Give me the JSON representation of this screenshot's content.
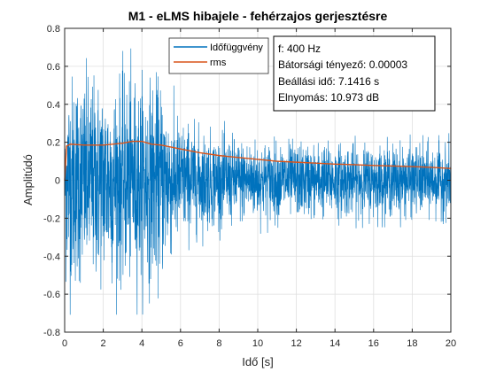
{
  "chart_data": {
    "type": "line",
    "title": "M1 - eLMS hibajele - fehérzajos gerjesztésre",
    "xlabel": "Idő [s]",
    "ylabel": "Amplitúdó",
    "xlim": [
      0,
      20
    ],
    "ylim": [
      -0.8,
      0.8
    ],
    "xticks": [
      0,
      2,
      4,
      6,
      8,
      10,
      12,
      14,
      16,
      18,
      20
    ],
    "yticks": [
      -0.8,
      -0.6,
      -0.4,
      -0.2,
      0,
      0.2,
      0.4,
      0.6,
      0.8
    ],
    "grid": true,
    "legend_placement": "top-center",
    "series": [
      {
        "name": "Időfüggvény",
        "color": "#0072BD",
        "envelope": {
          "x": [
            0,
            0.05,
            0.3,
            1,
            2,
            3,
            4,
            5,
            5.5,
            6,
            7,
            8,
            9,
            10,
            12,
            14,
            16,
            18,
            20
          ],
          "max_abs": [
            0.0,
            0.62,
            0.65,
            0.62,
            0.6,
            0.6,
            0.6,
            0.58,
            0.45,
            0.36,
            0.3,
            0.27,
            0.25,
            0.24,
            0.22,
            0.22,
            0.21,
            0.21,
            0.21
          ]
        }
      },
      {
        "name": "rms",
        "color": "#D95319",
        "x": [
          0,
          0.1,
          0.3,
          1,
          2,
          3,
          3.5,
          4,
          4.5,
          5,
          6,
          7,
          8,
          9,
          10,
          11,
          12,
          13,
          14,
          15,
          16,
          17,
          18,
          19,
          20
        ],
        "values": [
          0.0,
          0.18,
          0.19,
          0.185,
          0.185,
          0.195,
          0.205,
          0.205,
          0.19,
          0.185,
          0.165,
          0.145,
          0.13,
          0.12,
          0.11,
          0.1,
          0.095,
          0.09,
          0.085,
          0.082,
          0.078,
          0.075,
          0.072,
          0.068,
          0.062
        ]
      }
    ],
    "annotation": {
      "lines": [
        "f: 400 Hz",
        "Bátorsági tényező: 0.00003",
        "Beállási idő: 7.1416 s",
        "Elnyomás: 10.973 dB"
      ]
    }
  }
}
